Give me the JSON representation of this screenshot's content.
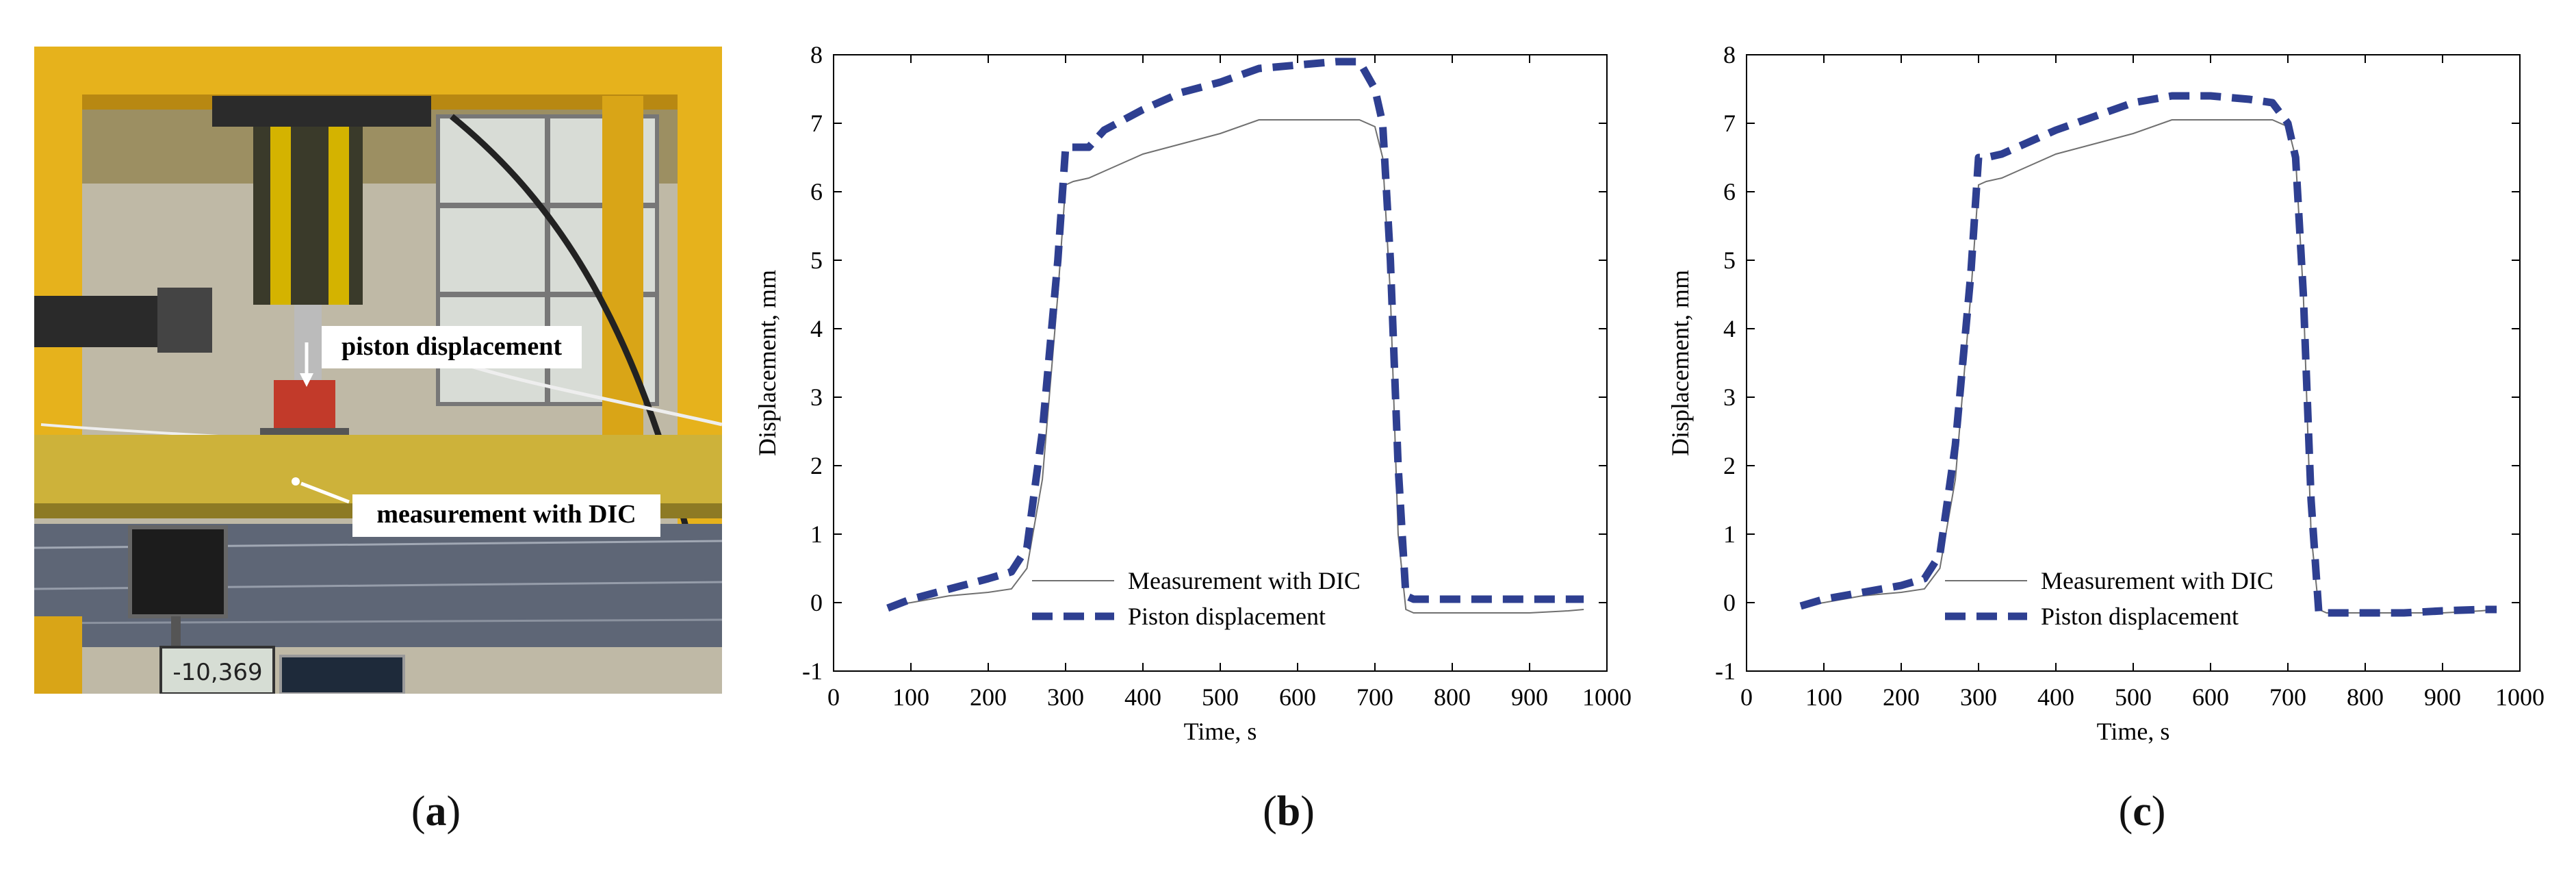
{
  "panels": {
    "a": {
      "label": "a",
      "callouts": [
        "piston displacement",
        "measurement with  DIC"
      ],
      "readout": "-10,369"
    },
    "b": {
      "label": "b"
    },
    "c": {
      "label": "c"
    }
  },
  "colors": {
    "frame_yellow": "#e6b21c",
    "piston_series": "#2e3f91",
    "dic_series": "#707070"
  },
  "chart_data": [
    {
      "type": "line",
      "panel": "b",
      "title": "",
      "xlabel": "Time, s",
      "ylabel": "Displacement, mm",
      "xlim": [
        0,
        1000
      ],
      "ylim": [
        -1,
        8
      ],
      "xticks": [
        0,
        100,
        200,
        300,
        400,
        500,
        600,
        700,
        800,
        900,
        1000
      ],
      "yticks": [
        -1,
        0,
        1,
        2,
        3,
        4,
        5,
        6,
        7,
        8
      ],
      "grid": false,
      "legend_position": "bottom-center",
      "series": [
        {
          "name": "Measurement with DIC",
          "style": "thin-solid",
          "x": [
            70,
            100,
            150,
            200,
            230,
            250,
            270,
            290,
            300,
            310,
            330,
            350,
            400,
            450,
            500,
            550,
            600,
            650,
            680,
            700,
            710,
            720,
            730,
            740,
            750,
            800,
            850,
            900,
            950,
            970
          ],
          "y": [
            -0.05,
            0.0,
            0.1,
            0.15,
            0.2,
            0.5,
            1.8,
            4.5,
            6.1,
            6.15,
            6.2,
            6.3,
            6.55,
            6.7,
            6.85,
            7.05,
            7.05,
            7.05,
            7.05,
            6.95,
            6.5,
            4.5,
            1.0,
            -0.1,
            -0.15,
            -0.15,
            -0.15,
            -0.15,
            -0.12,
            -0.1
          ]
        },
        {
          "name": "Piston displacement",
          "style": "thick-dashed",
          "x": [
            70,
            100,
            150,
            200,
            230,
            250,
            270,
            290,
            300,
            310,
            330,
            350,
            400,
            450,
            500,
            550,
            600,
            650,
            680,
            700,
            710,
            720,
            730,
            740,
            750,
            800,
            850,
            900,
            950,
            970
          ],
          "y": [
            -0.08,
            0.05,
            0.2,
            0.35,
            0.45,
            0.8,
            2.5,
            5.0,
            6.65,
            6.65,
            6.65,
            6.9,
            7.2,
            7.45,
            7.6,
            7.8,
            7.85,
            7.9,
            7.9,
            7.5,
            7.0,
            5.0,
            2.0,
            0.1,
            0.05,
            0.05,
            0.05,
            0.05,
            0.05,
            0.05
          ]
        }
      ]
    },
    {
      "type": "line",
      "panel": "c",
      "title": "",
      "xlabel": "Time, s",
      "ylabel": "Displacement, mm",
      "xlim": [
        0,
        1000
      ],
      "ylim": [
        -1,
        8
      ],
      "xticks": [
        0,
        100,
        200,
        300,
        400,
        500,
        600,
        700,
        800,
        900,
        1000
      ],
      "yticks": [
        -1,
        0,
        1,
        2,
        3,
        4,
        5,
        6,
        7,
        8
      ],
      "grid": false,
      "legend_position": "bottom-center",
      "series": [
        {
          "name": "Measurement with DIC",
          "style": "thin-solid",
          "x": [
            70,
            100,
            150,
            200,
            230,
            250,
            270,
            290,
            300,
            310,
            330,
            350,
            400,
            450,
            500,
            550,
            600,
            650,
            680,
            700,
            710,
            720,
            730,
            740,
            750,
            800,
            850,
            900,
            950,
            970
          ],
          "y": [
            -0.05,
            0.0,
            0.1,
            0.15,
            0.2,
            0.5,
            1.8,
            4.5,
            6.1,
            6.15,
            6.2,
            6.3,
            6.55,
            6.7,
            6.85,
            7.05,
            7.05,
            7.05,
            7.05,
            6.95,
            6.5,
            4.5,
            1.0,
            -0.1,
            -0.15,
            -0.15,
            -0.15,
            -0.15,
            -0.12,
            -0.1
          ]
        },
        {
          "name": "Piston displacement",
          "style": "thick-dashed",
          "x": [
            70,
            100,
            150,
            200,
            230,
            250,
            270,
            290,
            300,
            310,
            330,
            350,
            400,
            450,
            500,
            550,
            600,
            650,
            680,
            700,
            710,
            720,
            730,
            740,
            750,
            800,
            850,
            900,
            950,
            970
          ],
          "y": [
            -0.05,
            0.05,
            0.15,
            0.25,
            0.35,
            0.7,
            2.3,
            4.8,
            6.5,
            6.5,
            6.55,
            6.65,
            6.9,
            7.1,
            7.3,
            7.4,
            7.4,
            7.35,
            7.3,
            7.0,
            6.5,
            4.5,
            1.5,
            -0.15,
            -0.15,
            -0.15,
            -0.15,
            -0.12,
            -0.1,
            -0.1
          ]
        }
      ]
    }
  ]
}
